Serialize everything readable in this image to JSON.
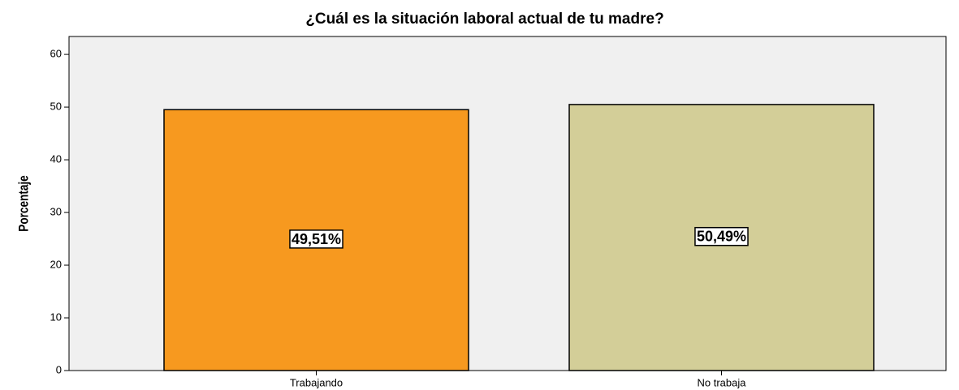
{
  "chart_data": {
    "type": "bar",
    "title": "¿Cuál es la situación laboral actual de tu madre?",
    "ylabel": "Porcentaje",
    "categories": [
      "Trabajando",
      "No trabaja"
    ],
    "values": [
      49.51,
      50.49
    ],
    "value_labels": [
      "49,51%",
      "50,49%"
    ],
    "colors": [
      "#f7991f",
      "#d3ce98"
    ],
    "ylim": [
      0,
      63.4
    ],
    "yticks": [
      0,
      10,
      20,
      30,
      40,
      50,
      60
    ],
    "grid": false
  }
}
